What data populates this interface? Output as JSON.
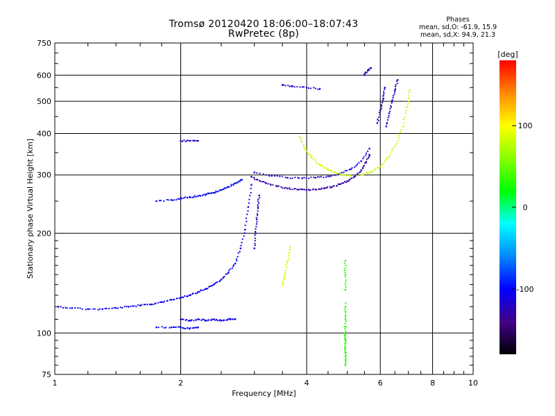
{
  "header": {
    "title_line1": "Tromsø 20120420 18:06:00–18:07:43",
    "title_line2": "RwPretec (8p)"
  },
  "stats": {
    "heading": "Phases",
    "line_o": "mean, sd,O: -61.9, 15.9",
    "line_x": "mean, sd,X:  94.9, 21.3"
  },
  "colorbar": {
    "unit_label": "[deg]",
    "tick_labels": [
      "100",
      "0",
      "-100"
    ],
    "range": [
      -180,
      180
    ],
    "colors_top_to_bottom": [
      "#ff0000",
      "#ff8800",
      "#ffff00",
      "#88ff00",
      "#00ff00",
      "#00ffff",
      "#0088ff",
      "#0000ff",
      "#440088",
      "#000000"
    ]
  },
  "chart_data": {
    "type": "scatter",
    "xlabel": "Frequency [MHz]",
    "ylabel": "Stationary phase Virtual Height [km]",
    "xscale": "log",
    "yscale": "log",
    "xlim": [
      1,
      10
    ],
    "ylim": [
      75,
      750
    ],
    "grid": true,
    "x_ticks": [
      1,
      2,
      4,
      6,
      8,
      10
    ],
    "x_tick_labels": [
      "1",
      "2",
      "4",
      "6",
      "8",
      "10"
    ],
    "y_ticks": [
      75,
      100,
      200,
      300,
      400,
      500,
      600,
      750
    ],
    "y_tick_labels": [
      "75",
      "100",
      "200",
      "300",
      "400",
      "500",
      "600",
      "750"
    ],
    "x_minor_ticks": [
      1.2,
      1.4,
      1.6,
      1.8,
      2.5,
      3,
      3.5,
      4.5,
      5,
      5.5,
      6.5,
      7,
      7.5,
      8.5,
      9,
      9.5
    ],
    "y_minor_ticks": [
      80,
      85,
      90,
      95,
      110,
      120,
      130,
      140,
      150,
      160,
      170,
      180,
      190,
      250,
      350,
      450,
      550,
      650,
      700
    ],
    "o_mode_phase_deg": -110,
    "x_mode_phase_deg": 90,
    "traces": [
      {
        "mode": "o",
        "phase": -105,
        "points": [
          [
            1.02,
            120
          ],
          [
            1.1,
            119
          ],
          [
            1.2,
            118
          ],
          [
            1.3,
            118
          ],
          [
            1.4,
            119
          ],
          [
            1.5,
            120
          ],
          [
            1.6,
            121
          ],
          [
            1.7,
            122
          ],
          [
            1.8,
            124
          ],
          [
            1.9,
            126
          ],
          [
            2.0,
            128
          ],
          [
            2.1,
            130
          ],
          [
            2.2,
            133
          ],
          [
            2.3,
            136
          ],
          [
            2.4,
            140
          ],
          [
            2.5,
            145
          ],
          [
            2.6,
            152
          ],
          [
            2.7,
            162
          ],
          [
            2.78,
            180
          ],
          [
            2.85,
            205
          ],
          [
            2.9,
            240
          ],
          [
            2.95,
            280
          ]
        ]
      },
      {
        "mode": "o",
        "phase": -100,
        "points": [
          [
            1.75,
            250
          ],
          [
            1.9,
            252
          ],
          [
            2.0,
            255
          ],
          [
            2.1,
            257
          ],
          [
            2.2,
            259
          ],
          [
            2.3,
            262
          ],
          [
            2.4,
            265
          ],
          [
            2.5,
            270
          ],
          [
            2.6,
            276
          ],
          [
            2.7,
            283
          ],
          [
            2.8,
            290
          ]
        ]
      },
      {
        "mode": "o",
        "phase": -130,
        "points": [
          [
            2.95,
            296
          ],
          [
            3.05,
            290
          ],
          [
            3.2,
            283
          ],
          [
            3.4,
            277
          ],
          [
            3.6,
            273
          ],
          [
            3.8,
            271
          ],
          [
            4.0,
            270
          ],
          [
            4.2,
            271
          ],
          [
            4.4,
            273
          ],
          [
            4.6,
            276
          ],
          [
            4.8,
            281
          ],
          [
            5.0,
            287
          ],
          [
            5.2,
            296
          ],
          [
            5.4,
            310
          ],
          [
            5.55,
            327
          ],
          [
            5.65,
            345
          ]
        ]
      },
      {
        "mode": "o",
        "phase": -115,
        "points": [
          [
            3.0,
            305
          ],
          [
            3.3,
            298
          ],
          [
            3.6,
            294
          ],
          [
            3.9,
            293
          ],
          [
            4.2,
            294
          ],
          [
            4.5,
            297
          ],
          [
            4.8,
            302
          ],
          [
            5.1,
            312
          ],
          [
            5.4,
            330
          ],
          [
            5.65,
            360
          ]
        ]
      },
      {
        "mode": "o",
        "phase": -120,
        "points": [
          [
            2.0,
            380
          ],
          [
            2.1,
            380
          ],
          [
            2.2,
            380
          ]
        ]
      },
      {
        "mode": "o",
        "phase": -110,
        "points": [
          [
            2.0,
            110
          ],
          [
            2.1,
            109
          ],
          [
            2.2,
            110
          ],
          [
            2.3,
            109
          ],
          [
            2.4,
            110
          ],
          [
            2.5,
            109
          ],
          [
            2.6,
            110
          ],
          [
            2.7,
            110
          ]
        ]
      },
      {
        "mode": "o",
        "phase": -100,
        "points": [
          [
            1.75,
            104
          ],
          [
            1.9,
            104
          ],
          [
            2.0,
            104
          ],
          [
            2.1,
            103
          ],
          [
            2.2,
            104
          ]
        ]
      },
      {
        "mode": "x",
        "phase": 82,
        "points": [
          [
            3.85,
            390
          ],
          [
            3.95,
            360
          ],
          [
            4.1,
            340
          ],
          [
            4.3,
            322
          ],
          [
            4.5,
            311
          ],
          [
            4.7,
            304
          ],
          [
            4.9,
            300
          ],
          [
            5.1,
            298
          ]
        ]
      },
      {
        "mode": "x",
        "phase": 78,
        "points": [
          [
            5.4,
            300
          ],
          [
            5.7,
            306
          ],
          [
            6.0,
            318
          ],
          [
            6.3,
            340
          ],
          [
            6.55,
            372
          ],
          [
            6.8,
            420
          ],
          [
            6.95,
            480
          ],
          [
            7.05,
            540
          ]
        ]
      },
      {
        "mode": "x",
        "phase": 85,
        "points": [
          [
            3.5,
            140
          ],
          [
            3.55,
            150
          ],
          [
            3.6,
            165
          ],
          [
            3.65,
            182
          ]
        ]
      },
      {
        "mode": "x",
        "phase": 30,
        "points": [
          [
            4.95,
            120
          ],
          [
            4.95,
            110
          ],
          [
            4.95,
            100
          ],
          [
            4.95,
            95
          ],
          [
            4.95,
            90
          ],
          [
            4.95,
            85
          ],
          [
            4.95,
            80
          ],
          [
            4.95,
            135
          ],
          [
            4.95,
            150
          ],
          [
            4.95,
            165
          ]
        ]
      },
      {
        "mode": "o",
        "phase": -125,
        "points": [
          [
            3.0,
            180
          ],
          [
            3.02,
            200
          ],
          [
            3.04,
            220
          ],
          [
            3.06,
            240
          ],
          [
            3.08,
            260
          ]
        ]
      },
      {
        "mode": "o",
        "phase": -120,
        "points": [
          [
            6.2,
            420
          ],
          [
            6.3,
            460
          ],
          [
            6.4,
            500
          ],
          [
            6.5,
            540
          ],
          [
            6.6,
            580
          ]
        ]
      },
      {
        "mode": "o",
        "phase": -120,
        "points": [
          [
            5.9,
            430
          ],
          [
            6.0,
            470
          ],
          [
            6.1,
            510
          ],
          [
            6.15,
            550
          ]
        ]
      },
      {
        "mode": "o",
        "phase": -125,
        "points": [
          [
            5.5,
            600
          ],
          [
            5.6,
            620
          ],
          [
            5.7,
            630
          ]
        ]
      },
      {
        "mode": "o",
        "phase": -115,
        "points": [
          [
            3.5,
            560
          ],
          [
            3.7,
            555
          ],
          [
            4.0,
            550
          ],
          [
            4.3,
            545
          ]
        ]
      }
    ]
  }
}
